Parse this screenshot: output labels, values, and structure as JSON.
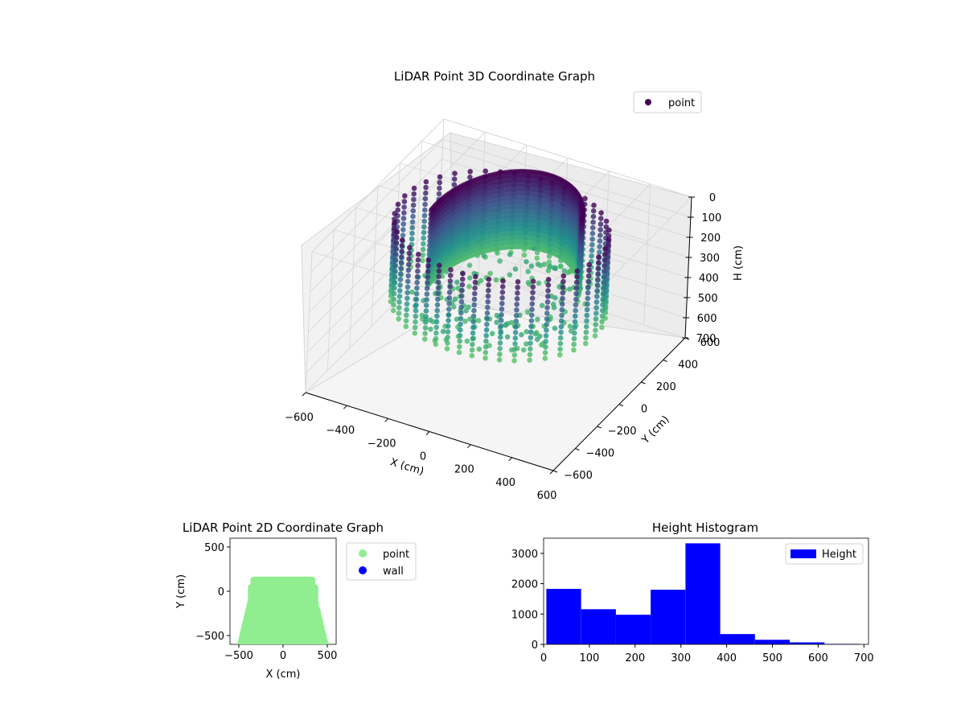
{
  "chart_data": [
    {
      "type": "scatter",
      "title": "LiDAR Point 3D Coordinate Graph",
      "xlabel": "X (cm)",
      "ylabel": "Y (cm)",
      "zlabel": "H (cm)",
      "xlim": [
        -600,
        600
      ],
      "ylim": [
        -600,
        600
      ],
      "zlim": [
        0,
        700
      ],
      "z_inverted": true,
      "x_ticks": [
        "−600",
        "−400",
        "−200",
        "0",
        "200",
        "400",
        "600"
      ],
      "y_ticks": [
        "−600",
        "−400",
        "−200",
        "0",
        "200",
        "400",
        "600"
      ],
      "z_ticks": [
        "0",
        "100",
        "200",
        "300",
        "400",
        "500",
        "600",
        "700"
      ],
      "legend": {
        "entries": [
          "point"
        ],
        "placement": "top-right"
      },
      "colormap": "viridis",
      "grid": true
    },
    {
      "type": "scatter",
      "title": "LiDAR Point 2D Coordinate Graph",
      "xlabel": "X (cm)",
      "ylabel": "Y (cm)",
      "xlim": [
        -600,
        600
      ],
      "ylim": [
        -600,
        600
      ],
      "x_ticks": [
        "−500",
        "0",
        "500"
      ],
      "y_ticks": [
        "−500",
        "0",
        "500"
      ],
      "series": [
        {
          "name": "point",
          "color": "#90ee90"
        },
        {
          "name": "wall",
          "color": "#0000ff"
        }
      ],
      "legend": {
        "placement": "outside-right"
      }
    },
    {
      "type": "bar",
      "title": "Height Histogram",
      "xlabel": "",
      "ylabel": "",
      "bin_edges": [
        6,
        82,
        158,
        234,
        310,
        386,
        462,
        538,
        614,
        690
      ],
      "values": [
        1830,
        1160,
        975,
        1800,
        3330,
        340,
        150,
        65,
        15
      ],
      "xlim": [
        0,
        710
      ],
      "ylim": [
        0,
        3500
      ],
      "x_ticks": [
        "0",
        "100",
        "200",
        "300",
        "400",
        "500",
        "600",
        "700"
      ],
      "y_ticks": [
        "0",
        "1000",
        "2000",
        "3000"
      ],
      "series": [
        {
          "name": "Height",
          "color": "#0000ff"
        }
      ],
      "legend": {
        "placement": "top-right"
      }
    }
  ]
}
